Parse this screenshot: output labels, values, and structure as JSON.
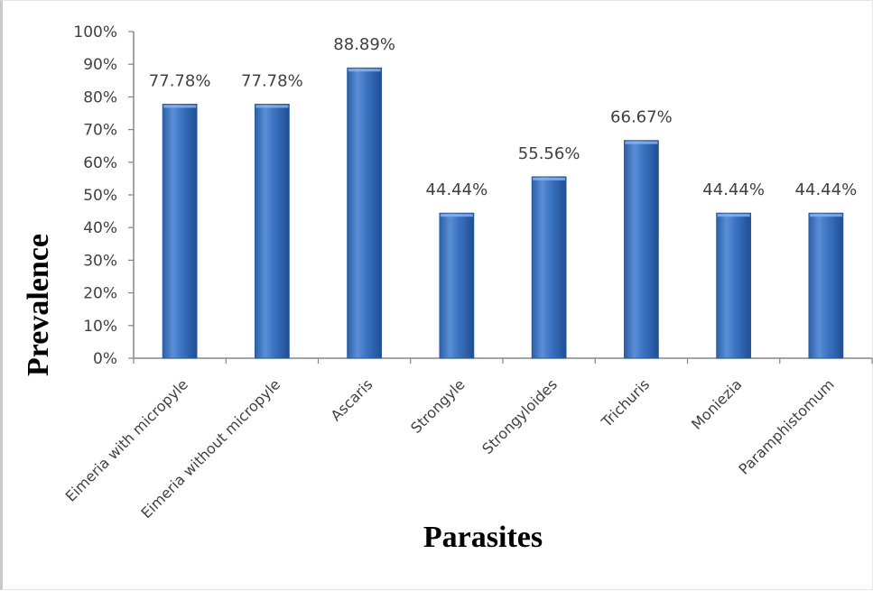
{
  "chart_data": {
    "type": "bar",
    "title": "",
    "xlabel": "Parasites",
    "ylabel": "Prevalence",
    "ylim": [
      0,
      100
    ],
    "y_ticks": [
      "0%",
      "10%",
      "20%",
      "30%",
      "40%",
      "50%",
      "60%",
      "70%",
      "80%",
      "90%",
      "100%"
    ],
    "categories": [
      "Eimeria with micropyle",
      "Eimeria without micropyle",
      "Ascaris",
      "Strongyle",
      "Strongyloides",
      "Trichuris",
      "Moniezia",
      "Paramphistomum"
    ],
    "values": [
      77.78,
      77.78,
      88.89,
      44.44,
      55.56,
      66.67,
      44.44,
      44.44
    ],
    "data_labels": [
      "77.78%",
      "77.78%",
      "88.89%",
      "44.44%",
      "55.56%",
      "66.67%",
      "44.44%",
      "44.44%"
    ],
    "grid": false,
    "legend": "none",
    "colors": {
      "bar_light": "#6fa0dc",
      "bar_mid": "#3a75c4",
      "bar_dark": "#1f4f95",
      "axis": "#868686"
    }
  }
}
